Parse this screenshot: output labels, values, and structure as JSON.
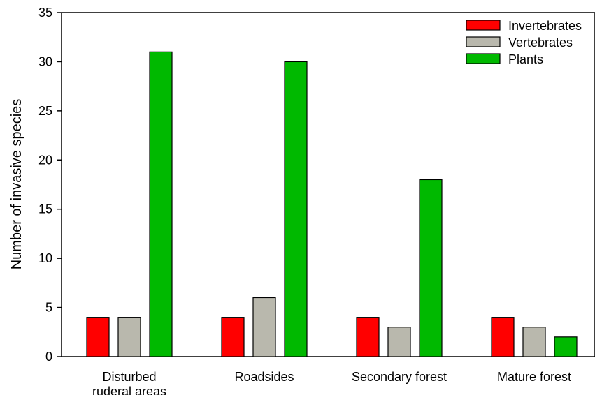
{
  "chart_data": {
    "type": "bar",
    "categories": [
      [
        "Disturbed",
        "ruderal areas"
      ],
      [
        "Roadsides"
      ],
      [
        "Secondary forest"
      ],
      [
        "Mature forest"
      ]
    ],
    "series": [
      {
        "name": "Invertebrates",
        "color": "#ff0000",
        "values": [
          4,
          4,
          4,
          4
        ]
      },
      {
        "name": "Vertebrates",
        "color": "#b9b8ad",
        "values": [
          4,
          6,
          3,
          3
        ]
      },
      {
        "name": "Plants",
        "color": "#00b900",
        "values": [
          31,
          30,
          18,
          2
        ]
      }
    ],
    "title": "",
    "xlabel": "",
    "ylabel": "Number of invasive species",
    "ylim": [
      0,
      35
    ],
    "yticks": [
      0,
      5,
      10,
      15,
      20,
      25,
      30,
      35
    ],
    "grid": false,
    "legend": "top-right"
  }
}
